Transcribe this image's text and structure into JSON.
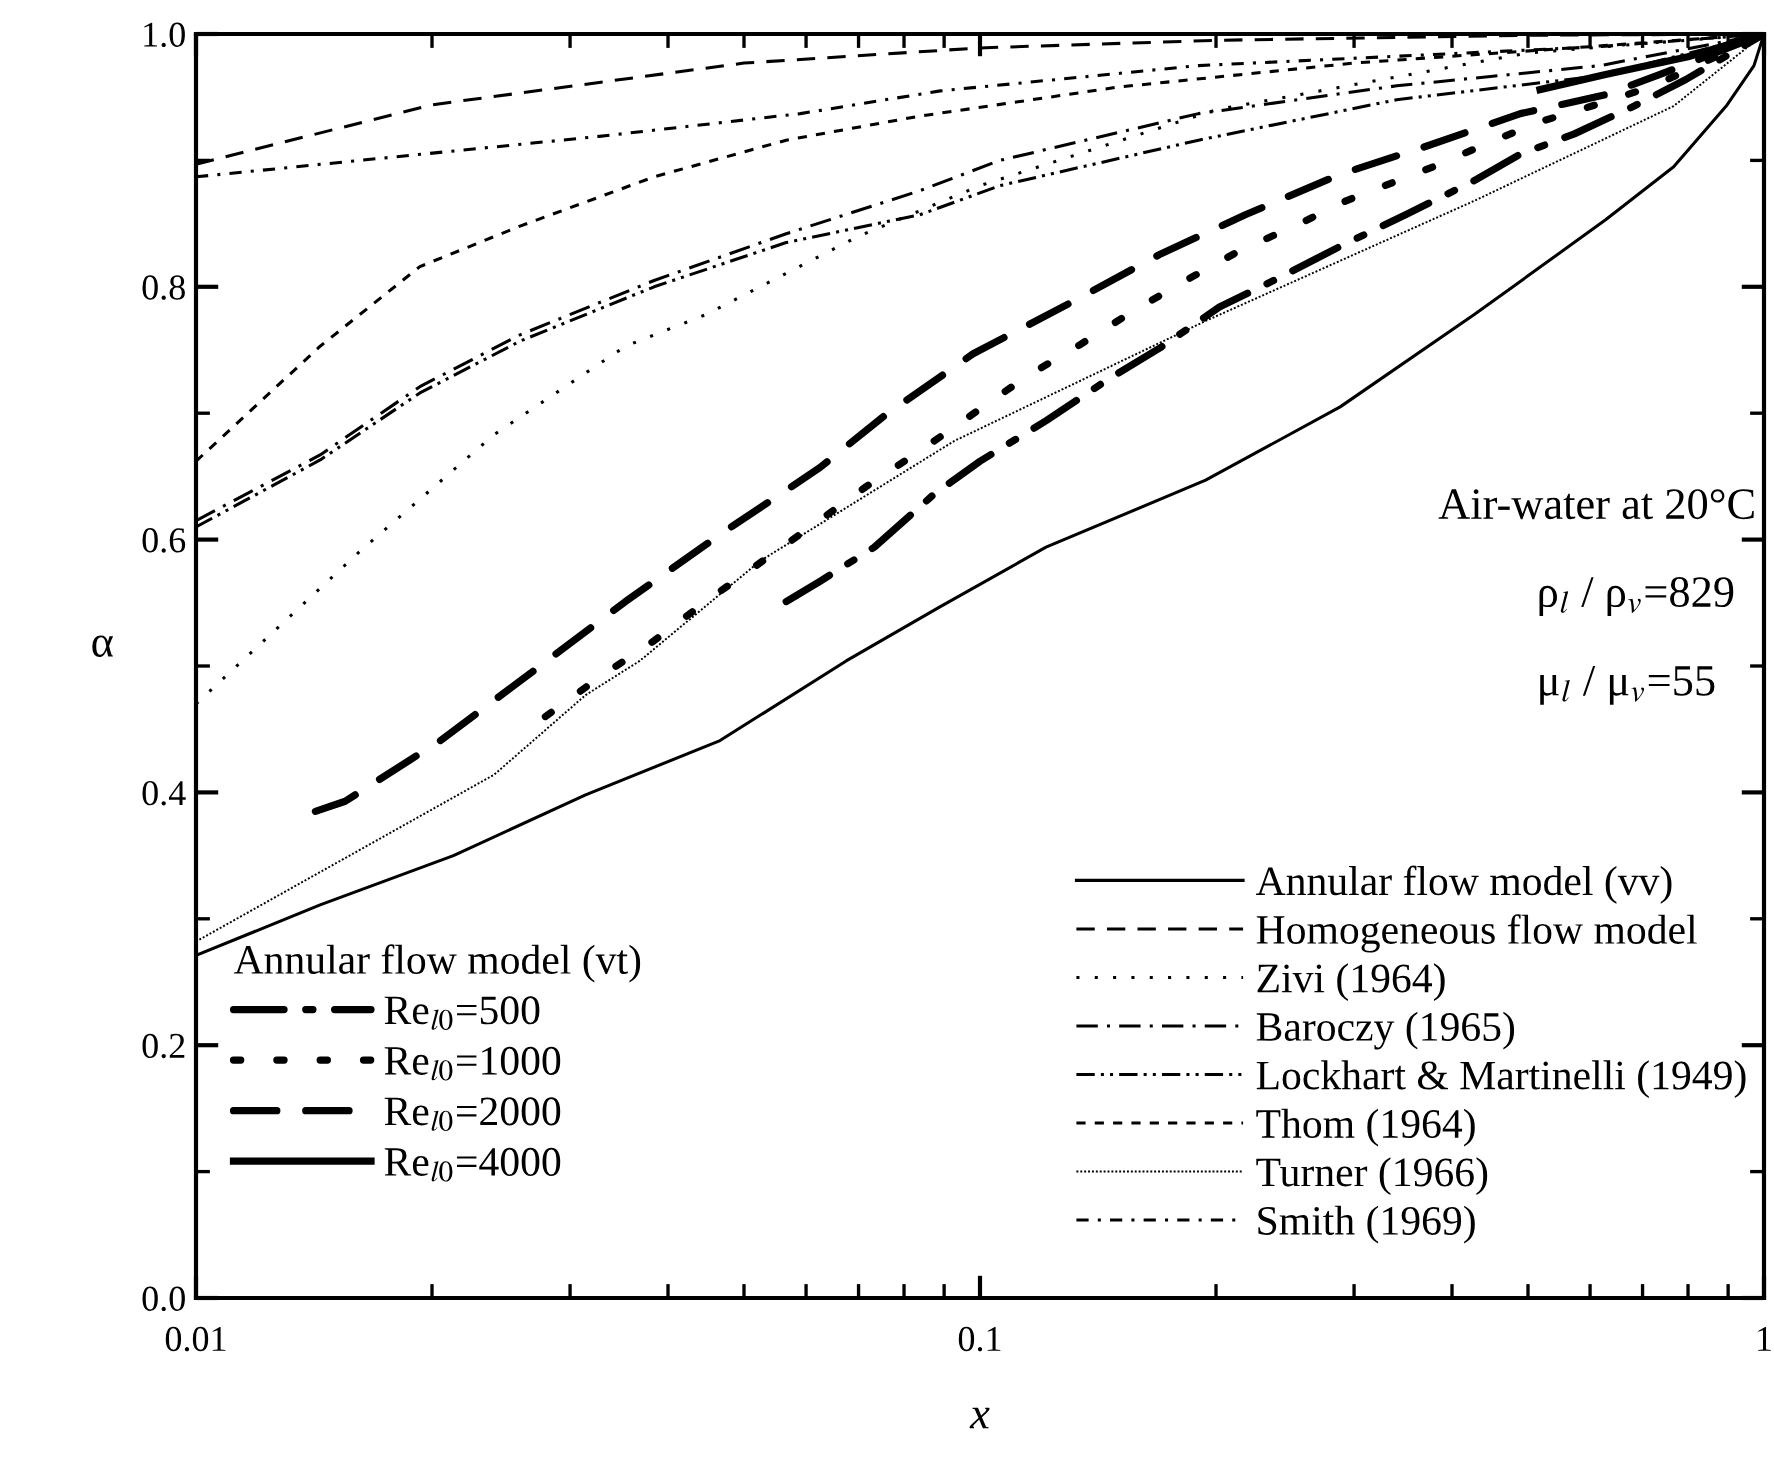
{
  "chart_data": {
    "type": "line",
    "xlabel": "x",
    "ylabel": "α",
    "legend_title": "Annular flow model (vt)",
    "log": "x",
    "xlim": [
      0.01,
      1
    ],
    "xticks": [
      0.01,
      0.1,
      1
    ],
    "ylim": [
      0,
      1
    ],
    "yticks": [
      {
        "value": 0,
        "label": "0.0"
      },
      {
        "value": 0.2,
        "label": "0.2"
      },
      {
        "value": 0.4,
        "label": "0.4"
      },
      {
        "value": 0.6,
        "label": "0.6"
      },
      {
        "value": 0.8,
        "label": "0.8"
      },
      {
        "value": 1,
        "label": "1.0"
      }
    ],
    "grid": false,
    "legend": "bottom right",
    "marker": "none",
    "annotations": [
      "Air-water at 20°C",
      "ρ$_{l}$ / ρ$_{v}$=829",
      "μ$_{l}$ / μ$_{v}$=55"
    ],
    "series": [
      {
        "name": "Re$_{l0}$=500",
        "color": "#000000",
        "line_style": "dashdot",
        "x": [
          0.0566,
          0.0625,
          0.0733,
          0.0874,
          0.1,
          0.1214,
          0.145,
          0.17,
          0.202,
          0.237,
          0.288,
          0.349,
          0.427,
          0.489,
          0.573,
          0.683,
          0.795,
          1
        ],
        "values": [
          0.551,
          0.567,
          0.594,
          0.636,
          0.662,
          0.694,
          0.726,
          0.752,
          0.784,
          0.805,
          0.832,
          0.857,
          0.884,
          0.905,
          0.921,
          0.943,
          0.964,
          1
        ]
      },
      {
        "name": "Re$_{l0}$=1000",
        "color": "#000000",
        "line_style": "dotted",
        "x": [
          0.0279,
          0.0327,
          0.0384,
          0.0447,
          0.0614,
          0.0716,
          0.0838,
          0.1146,
          0.134,
          0.157,
          0.183,
          0.215,
          0.252,
          0.293,
          0.386,
          0.453,
          0.527,
          0.618,
          0.724,
          1
        ],
        "values": [
          0.46,
          0.491,
          0.52,
          0.551,
          0.612,
          0.642,
          0.67,
          0.729,
          0.754,
          0.781,
          0.805,
          0.829,
          0.848,
          0.868,
          0.897,
          0.916,
          0.932,
          0.945,
          0.959,
          1
        ]
      },
      {
        "name": "Re$_{l0}$=2000",
        "color": "#000000",
        "line_style": "dashed",
        "x": [
          0.0142,
          0.0155,
          0.0205,
          0.0264,
          0.0353,
          0.0466,
          0.0625,
          0.0759,
          0.098,
          0.132,
          0.17,
          0.218,
          0.288,
          0.37,
          0.489,
          0.628,
          0.737,
          1
        ],
        "values": [
          0.385,
          0.393,
          0.441,
          0.492,
          0.551,
          0.604,
          0.657,
          0.699,
          0.747,
          0.789,
          0.826,
          0.857,
          0.889,
          0.911,
          0.937,
          0.952,
          0.968,
          1
        ]
      },
      {
        "name": "Re$_{l0}$=4000",
        "color": "#000000",
        "line_style": "solid",
        "x": [
          0.518,
          0.628,
          0.8,
          1
        ],
        "values": [
          0.956,
          0.968,
          0.982,
          1
        ]
      },
      {
        "name": "Annular flow model (vv)",
        "color": "#000000",
        "line_style": "solid",
        "x": [
          0.01,
          0.0144,
          0.0213,
          0.0314,
          0.0466,
          0.0675,
          0.089,
          0.1214,
          0.194,
          0.288,
          0.427,
          0.628,
          0.767,
          0.895,
          0.971,
          1
        ],
        "values": [
          0.271,
          0.311,
          0.35,
          0.398,
          0.441,
          0.504,
          0.547,
          0.594,
          0.647,
          0.705,
          0.778,
          0.853,
          0.895,
          0.943,
          0.975,
          1
        ]
      },
      {
        "name": "Homogeneous flow model",
        "color": "#000000",
        "line_style": "dashed",
        "x": [
          0.01,
          0.02,
          0.05,
          0.1,
          0.2,
          0.5,
          1
        ],
        "values": [
          0.897,
          0.944,
          0.977,
          0.989,
          0.995,
          0.999,
          1
        ]
      },
      {
        "name": "Zivi (1964)",
        "color": "#000000",
        "line_style": "dotted",
        "x": [
          0.01,
          0.0162,
          0.024,
          0.0353,
          0.0447,
          0.07,
          0.1,
          0.2,
          0.5,
          1
        ],
        "values": [
          0.47,
          0.591,
          0.683,
          0.753,
          0.778,
          0.84,
          0.88,
          0.94,
          0.985,
          1
        ]
      },
      {
        "name": "Baroczy (1965)",
        "color": "#000000",
        "line_style": "dashdot",
        "x": [
          0.01,
          0.0144,
          0.0193,
          0.0259,
          0.0384,
          0.0566,
          0.0838,
          0.106,
          0.19,
          0.34,
          0.618,
          1
        ],
        "values": [
          0.615,
          0.667,
          0.721,
          0.762,
          0.805,
          0.842,
          0.876,
          0.9,
          0.937,
          0.959,
          0.975,
          1
        ]
      },
      {
        "name": "Lockhart & Martinelli (1949)",
        "color": "#000000",
        "line_style": "dashdotdot",
        "x": [
          0.01,
          0.0144,
          0.0193,
          0.0259,
          0.0384,
          0.0566,
          0.0838,
          0.106,
          0.19,
          0.34,
          0.618,
          1
        ],
        "values": [
          0.61,
          0.663,
          0.716,
          0.757,
          0.8,
          0.835,
          0.857,
          0.88,
          0.916,
          0.948,
          0.967,
          1
        ]
      },
      {
        "name": "Thom (1964)",
        "color": "#000000",
        "line_style": "shortdash",
        "x": [
          0.01,
          0.0144,
          0.0193,
          0.0259,
          0.0384,
          0.0566,
          0.0838,
          0.15,
          0.3,
          0.6,
          1
        ],
        "values": [
          0.662,
          0.753,
          0.816,
          0.848,
          0.887,
          0.916,
          0.935,
          0.958,
          0.977,
          0.99,
          1
        ]
      },
      {
        "name": "Turner (1966)",
        "color": "#000000",
        "line_style": "densedot",
        "x": [
          0.01,
          0.024,
          0.0314,
          0.0368,
          0.0524,
          0.0927,
          0.194,
          0.427,
          0.767,
          1
        ],
        "values": [
          0.282,
          0.414,
          0.477,
          0.504,
          0.583,
          0.678,
          0.773,
          0.868,
          0.943,
          1
        ]
      },
      {
        "name": "Smith (1969)",
        "color": "#000000",
        "line_style": "shortdashdot",
        "x": [
          0.01,
          0.0327,
          0.059,
          0.089,
          0.19,
          0.618,
          1
        ],
        "values": [
          0.887,
          0.919,
          0.937,
          0.955,
          0.975,
          0.99,
          1
        ]
      }
    ]
  }
}
